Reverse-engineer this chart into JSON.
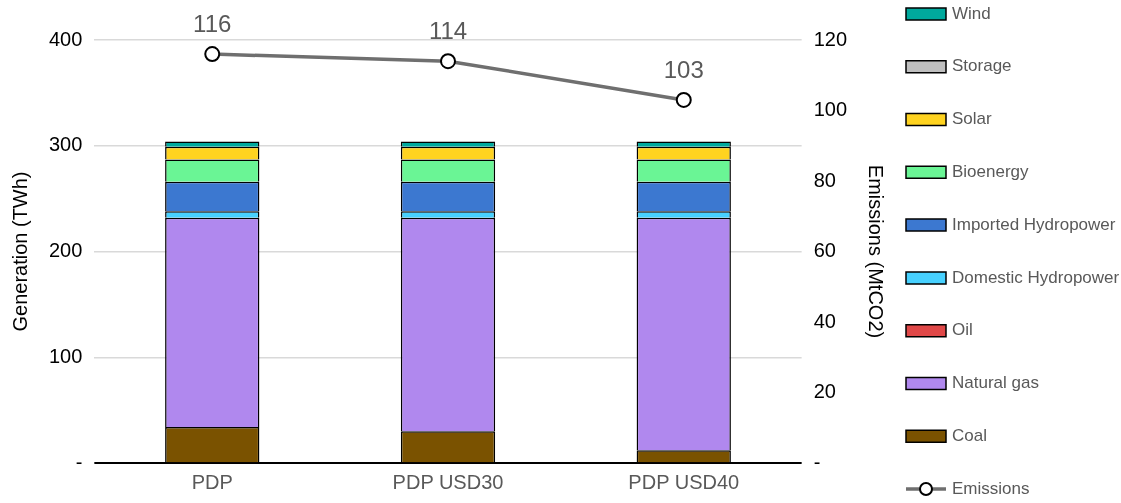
{
  "chart_data": {
    "type": "bar",
    "stacked": true,
    "categories": [
      "PDP",
      "PDP USD30",
      "PDP USD40"
    ],
    "ylabel": "Generation (TWh)",
    "y2label": "Emissions (MtCO2)",
    "ylim": [
      0,
      400
    ],
    "yticks": [
      {
        "value": 0,
        "label": "-"
      },
      100,
      200,
      300,
      400
    ],
    "y2lim": [
      0,
      120
    ],
    "y2ticks": [
      {
        "value": 0,
        "label": "-"
      },
      20,
      40,
      60,
      80,
      100,
      120
    ],
    "grid": "y",
    "legend": "right",
    "series": [
      {
        "name": "Coal",
        "color": "#7a5200",
        "values": [
          34,
          30,
          12
        ]
      },
      {
        "name": "Natural gas",
        "color": "#b088ee",
        "values": [
          198,
          202,
          220
        ]
      },
      {
        "name": "Oil",
        "color": "#e04848",
        "values": [
          0,
          0,
          0
        ]
      },
      {
        "name": "Domestic Hydropower",
        "color": "#47d1ff",
        "values": [
          6,
          6,
          6
        ]
      },
      {
        "name": "Imported Hydropower",
        "color": "#3c78d0",
        "values": [
          28,
          28,
          28
        ]
      },
      {
        "name": "Bioenergy",
        "color": "#6af595",
        "values": [
          21,
          21,
          21
        ]
      },
      {
        "name": "Solar",
        "color": "#ffd320",
        "values": [
          12,
          12,
          12
        ]
      },
      {
        "name": "Storage",
        "color": "#bfbfbf",
        "values": [
          0,
          0,
          0
        ]
      },
      {
        "name": "Wind",
        "color": "#00a99d",
        "values": [
          5,
          5,
          5
        ]
      },
      {
        "name": "Emissions",
        "type": "line",
        "axis": "y2",
        "marker": "circle",
        "color": "#6f6f6f",
        "values": [
          116,
          114,
          103
        ],
        "value_labels": [
          "116",
          "114",
          "103"
        ]
      }
    ]
  }
}
